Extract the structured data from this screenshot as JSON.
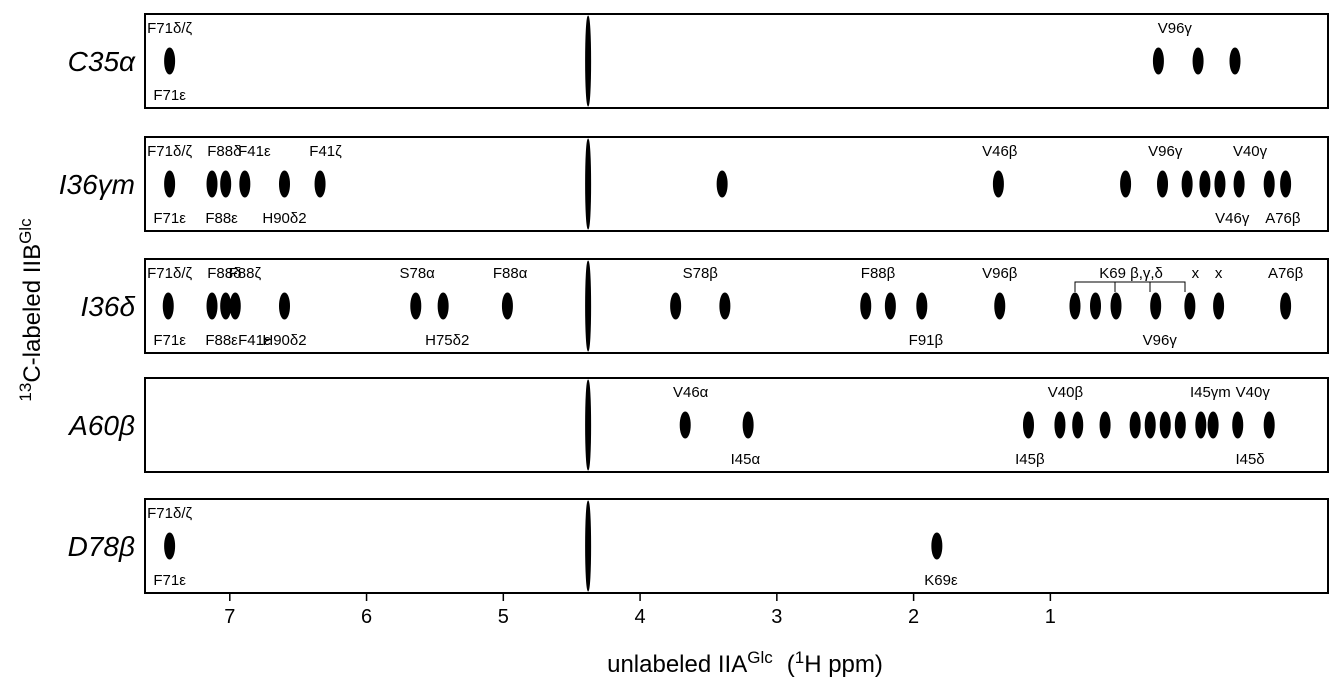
{
  "chart_data": {
    "type": "nmr-strips",
    "xlabel": {
      "main": "unlabeled IIA",
      "sup": "Glc",
      "unit_open": "(",
      "unit_sup": "1",
      "unit_rest": "H ppm)"
    },
    "ylabel": {
      "sup": "13",
      "main": "C-labeled IIB",
      "sup2": "Glc"
    },
    "xlim": [
      7.62,
      -1.03
    ],
    "xticks": [
      7,
      6,
      5,
      4,
      3,
      2,
      1
    ],
    "panels": [
      {
        "label": "C35α",
        "peaks": [
          7.44,
          4.38,
          0.21,
          -0.08,
          -0.35
        ],
        "labels_above": [
          {
            "text": "F71δ/ζ",
            "x": 7.44
          },
          {
            "text": "V96γ",
            "x": 0.09
          }
        ],
        "labels_below": [
          {
            "text": "F71ε",
            "x": 7.44
          }
        ]
      },
      {
        "label": "I36γm",
        "peaks": [
          7.44,
          7.13,
          7.03,
          6.89,
          6.6,
          6.34,
          4.38,
          3.4,
          1.38,
          0.45,
          0.18,
          0.0,
          -0.13,
          -0.24,
          -0.38,
          -0.6,
          -0.72
        ],
        "labels_above": [
          {
            "text": "F71δ/ζ",
            "x": 7.44
          },
          {
            "text": "F88δ",
            "x": 7.04
          },
          {
            "text": "F41ε",
            "x": 6.82
          },
          {
            "text": "F41ζ",
            "x": 6.3
          },
          {
            "text": "V46β",
            "x": 1.37
          },
          {
            "text": "V96γ",
            "x": 0.16
          },
          {
            "text": "V40γ",
            "x": -0.46
          }
        ],
        "labels_below": [
          {
            "text": "F71ε",
            "x": 7.44
          },
          {
            "text": "F88ε",
            "x": 7.06
          },
          {
            "text": "H90δ2",
            "x": 6.6
          },
          {
            "text": "V46γ",
            "x": -0.33
          },
          {
            "text": "A76β",
            "x": -0.7
          }
        ]
      },
      {
        "label": "I36δ",
        "peaks": [
          7.45,
          7.13,
          7.03,
          6.96,
          6.6,
          5.64,
          5.44,
          4.97,
          4.38,
          3.74,
          3.38,
          2.35,
          2.17,
          1.94,
          1.37,
          0.82,
          0.67,
          0.52,
          0.23,
          -0.02,
          -0.23,
          -0.72
        ],
        "labels_above": [
          {
            "text": "F71δ/ζ",
            "x": 7.44
          },
          {
            "text": "F88δ",
            "x": 7.04
          },
          {
            "text": "F88ζ",
            "x": 6.89
          },
          {
            "text": "S78α",
            "x": 5.63
          },
          {
            "text": "F88α",
            "x": 4.95
          },
          {
            "text": "S78β",
            "x": 3.56
          },
          {
            "text": "F88β",
            "x": 2.26
          },
          {
            "text": "V96β",
            "x": 1.37
          },
          {
            "text": "K69 β,γ,δ",
            "x": 0.41
          },
          {
            "text": "x",
            "x": -0.06
          },
          {
            "text": "x",
            "x": -0.23
          },
          {
            "text": "A76β",
            "x": -0.72
          }
        ],
        "labels_below": [
          {
            "text": "F71ε",
            "x": 7.44
          },
          {
            "text": "F88ε",
            "x": 7.06
          },
          {
            "text": "F41ε",
            "x": 6.82
          },
          {
            "text": "H90δ2",
            "x": 6.6
          },
          {
            "text": "H75δ2",
            "x": 5.41
          },
          {
            "text": "F91β",
            "x": 1.91
          },
          {
            "text": "V96γ",
            "x": 0.2
          }
        ]
      },
      {
        "label": "A60β",
        "peaks": [
          4.38,
          3.67,
          3.21,
          1.16,
          0.93,
          0.8,
          0.6,
          0.38,
          0.27,
          0.16,
          0.05,
          -0.1,
          -0.19,
          -0.37,
          -0.6
        ],
        "labels_above": [
          {
            "text": "V46α",
            "x": 3.63
          },
          {
            "text": "V40β",
            "x": 0.89
          },
          {
            "text": "I45γm",
            "x": -0.17
          },
          {
            "text": "V40γ",
            "x": -0.48
          }
        ],
        "labels_below": [
          {
            "text": "I45α",
            "x": 3.23
          },
          {
            "text": "I45β",
            "x": 1.15
          },
          {
            "text": "I45δ",
            "x": -0.46
          }
        ]
      },
      {
        "label": "D78β",
        "peaks": [
          7.44,
          4.38,
          1.83
        ],
        "labels_above": [
          {
            "text": "F71δ/ζ",
            "x": 7.44
          }
        ],
        "labels_below": [
          {
            "text": "F71ε",
            "x": 7.44
          },
          {
            "text": "K69ε",
            "x": 1.8
          }
        ]
      }
    ]
  }
}
